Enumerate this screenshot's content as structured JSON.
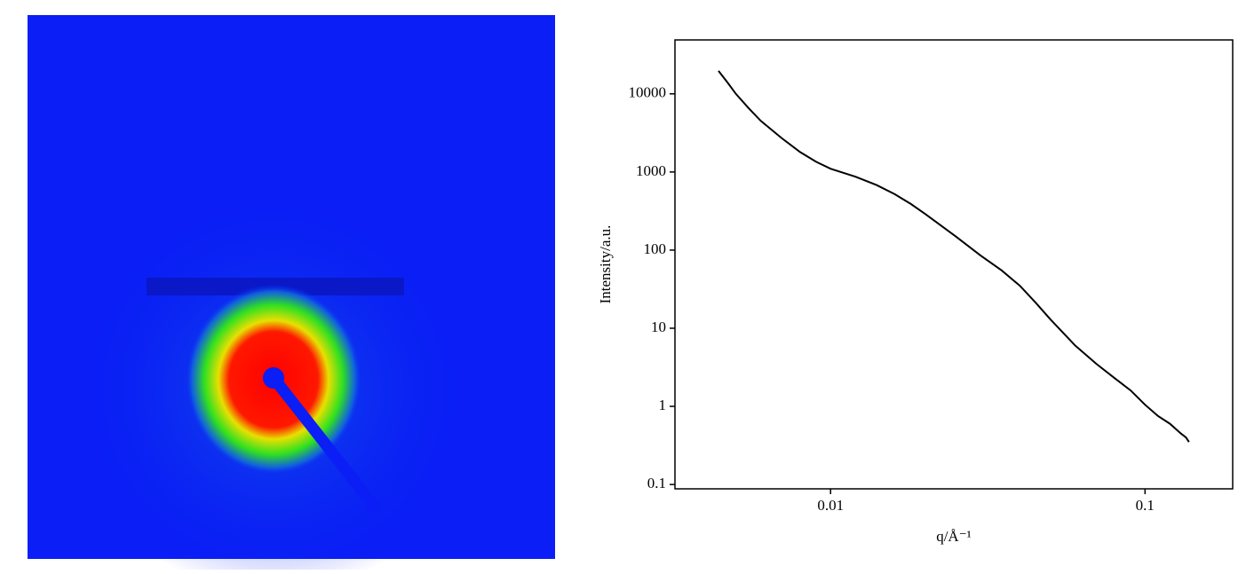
{
  "chart_data": {
    "type": "line",
    "x_label": "q/Å⁻¹",
    "y_label": "Intensity/a.u.",
    "x_scale": "log",
    "y_scale": "log",
    "xlim": [
      0.0032,
      0.19
    ],
    "ylim": [
      0.088,
      49000
    ],
    "xticks": [
      0.01,
      0.1
    ],
    "yticks": [
      0.1,
      1,
      10,
      100,
      1000,
      10000
    ],
    "series": [
      {
        "color": "#000000",
        "x": [
          0.0044,
          0.0047,
          0.005,
          0.0055,
          0.006,
          0.007,
          0.008,
          0.009,
          0.01,
          0.012,
          0.014,
          0.016,
          0.018,
          0.02,
          0.025,
          0.03,
          0.035,
          0.04,
          0.045,
          0.05,
          0.06,
          0.07,
          0.08,
          0.09,
          0.1,
          0.11,
          0.12,
          0.13,
          0.135,
          0.138
        ],
        "values": [
          19700,
          14000,
          10000,
          6500,
          4500,
          2700,
          1800,
          1350,
          1100,
          870,
          680,
          520,
          390,
          290,
          150,
          85,
          55,
          35,
          21,
          13,
          6,
          3.5,
          2.3,
          1.6,
          1.05,
          0.75,
          0.6,
          0.45,
          0.4,
          0.35
        ]
      }
    ]
  }
}
